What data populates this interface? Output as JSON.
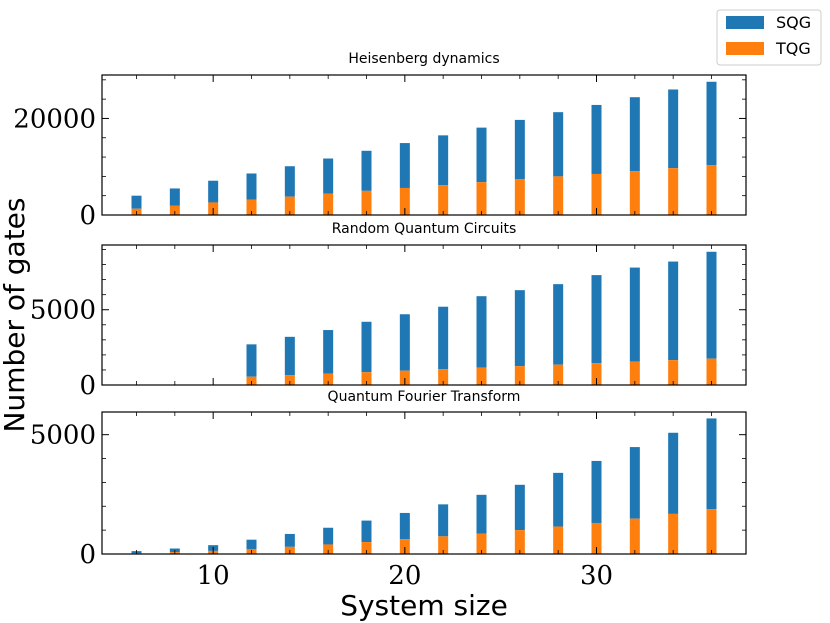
{
  "legend": {
    "sqg_label": "SQG",
    "tqg_label": "TQG",
    "sqg_color": "#1f77b4",
    "tqg_color": "#ff7f0e"
  },
  "ylabel": "Number of gates",
  "xlabel": "System size",
  "chart_data": [
    {
      "type": "bar",
      "stacked": true,
      "title": "Heisenberg dynamics",
      "x": [
        6,
        8,
        10,
        12,
        14,
        16,
        18,
        20,
        22,
        24,
        26,
        28,
        30,
        32,
        34,
        36
      ],
      "series": [
        {
          "name": "TQG",
          "values": [
            1300,
            1900,
            2600,
            3200,
            3800,
            4400,
            5000,
            5600,
            6200,
            6800,
            7400,
            8000,
            8500,
            9100,
            9700,
            10300
          ]
        },
        {
          "name": "SQG",
          "values": [
            2700,
            3600,
            4500,
            5400,
            6300,
            7300,
            8300,
            9300,
            10300,
            11300,
            12300,
            13300,
            14300,
            15300,
            16300,
            17300
          ]
        }
      ],
      "xlim": [
        4.2,
        37.8
      ],
      "ylim": [
        0,
        29000
      ],
      "yticks": [
        0,
        20000
      ],
      "ytick_labels": [
        "0",
        "20000"
      ]
    },
    {
      "type": "bar",
      "stacked": true,
      "title": "Random Quantum Circuits",
      "x": [
        12,
        14,
        16,
        18,
        20,
        22,
        24,
        26,
        28,
        30,
        32,
        34,
        36
      ],
      "series": [
        {
          "name": "TQG",
          "values": [
            550,
            650,
            750,
            850,
            950,
            1050,
            1150,
            1250,
            1350,
            1450,
            1550,
            1650,
            1750
          ]
        },
        {
          "name": "SQG",
          "values": [
            2150,
            2550,
            2900,
            3350,
            3750,
            4150,
            4750,
            5050,
            5350,
            5850,
            6250,
            6550,
            7100
          ]
        }
      ],
      "xlim": [
        4.2,
        37.8
      ],
      "ylim": [
        0,
        9300
      ],
      "yticks": [
        0,
        5000
      ],
      "ytick_labels": [
        "0",
        "5000"
      ]
    },
    {
      "type": "bar",
      "stacked": true,
      "title": "Quantum Fourier Transform",
      "x": [
        6,
        8,
        10,
        12,
        14,
        16,
        18,
        20,
        22,
        24,
        26,
        28,
        30,
        32,
        34,
        36
      ],
      "series": [
        {
          "name": "TQG",
          "values": [
            40,
            80,
            130,
            210,
            300,
            400,
            500,
            620,
            740,
            860,
            1000,
            1150,
            1300,
            1480,
            1680,
            1880
          ]
        },
        {
          "name": "SQG",
          "values": [
            80,
            150,
            240,
            390,
            540,
            700,
            900,
            1100,
            1340,
            1620,
            1900,
            2250,
            2600,
            3000,
            3400,
            3800
          ]
        }
      ],
      "xlim": [
        4.2,
        37.8
      ],
      "ylim": [
        0,
        5950
      ],
      "yticks": [
        0,
        5000
      ],
      "ytick_labels": [
        "0",
        "5000"
      ],
      "xticks": [
        10,
        20,
        30
      ],
      "xtick_labels": [
        "10",
        "20",
        "30"
      ]
    }
  ]
}
